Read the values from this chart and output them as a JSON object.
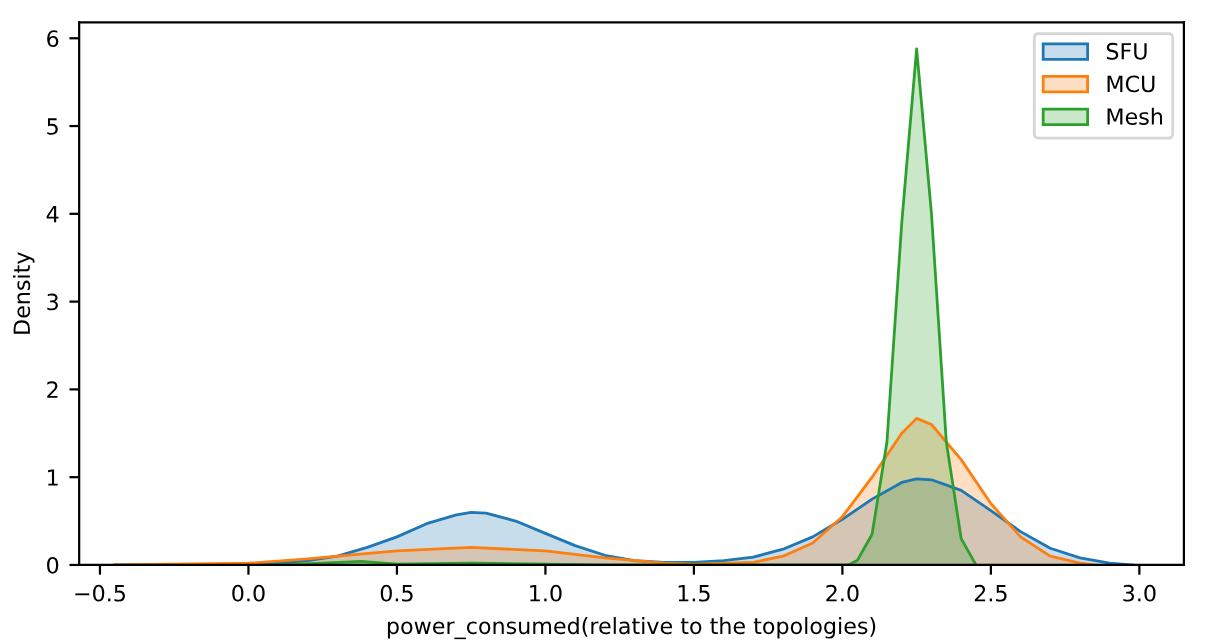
{
  "chart_data": {
    "type": "area",
    "xlabel": "power_consumed(relative to the topologies)",
    "ylabel": "Density",
    "xlim": [
      -0.57,
      3.15
    ],
    "ylim": [
      0,
      6.18
    ],
    "xticks": [
      {
        "value": -0.5,
        "label": "−0.5"
      },
      {
        "value": 0,
        "label": "0.0"
      },
      {
        "value": 0.5,
        "label": "0.5"
      },
      {
        "value": 1,
        "label": "1.0"
      },
      {
        "value": 1.5,
        "label": "1.5"
      },
      {
        "value": 2,
        "label": "2.0"
      },
      {
        "value": 2.5,
        "label": "2.5"
      },
      {
        "value": 3,
        "label": "3.0"
      }
    ],
    "yticks": [
      0,
      1,
      2,
      3,
      4,
      5,
      6
    ],
    "legend": "top right",
    "grid": false,
    "series": [
      {
        "name": "SFU",
        "color": "#1f77b4",
        "x": [
          -0.45,
          -0.2,
          0,
          0.1,
          0.2,
          0.3,
          0.4,
          0.5,
          0.6,
          0.7,
          0.75,
          0.8,
          0.9,
          1.0,
          1.1,
          1.2,
          1.3,
          1.4,
          1.5,
          1.6,
          1.7,
          1.8,
          1.9,
          2.0,
          2.1,
          2.2,
          2.25,
          2.3,
          2.4,
          2.5,
          2.6,
          2.7,
          2.8,
          2.9,
          2.98
        ],
        "values": [
          0,
          0,
          0.01,
          0.02,
          0.05,
          0.1,
          0.2,
          0.32,
          0.47,
          0.57,
          0.6,
          0.59,
          0.5,
          0.36,
          0.22,
          0.11,
          0.05,
          0.03,
          0.03,
          0.05,
          0.09,
          0.18,
          0.32,
          0.52,
          0.75,
          0.94,
          0.98,
          0.97,
          0.85,
          0.62,
          0.38,
          0.19,
          0.08,
          0.02,
          0
        ]
      },
      {
        "name": "MCU",
        "color": "#ff7f0e",
        "x": [
          -0.45,
          0,
          0.2,
          0.3,
          0.5,
          0.75,
          1.0,
          1.2,
          1.4,
          1.5,
          1.7,
          1.8,
          1.9,
          2.0,
          2.1,
          2.2,
          2.25,
          2.3,
          2.4,
          2.5,
          2.6,
          2.7,
          2.8,
          2.85
        ],
        "values": [
          0,
          0.02,
          0.07,
          0.1,
          0.16,
          0.2,
          0.16,
          0.08,
          0.02,
          0.01,
          0.03,
          0.1,
          0.25,
          0.55,
          1.0,
          1.5,
          1.67,
          1.6,
          1.2,
          0.7,
          0.32,
          0.1,
          0.02,
          0
        ]
      },
      {
        "name": "Mesh",
        "color": "#2ca02c",
        "x": [
          0.1,
          0.25,
          0.38,
          0.5,
          0.75,
          1.0,
          1.2,
          2.02,
          2.05,
          2.1,
          2.15,
          2.2,
          2.25,
          2.3,
          2.35,
          2.4,
          2.45
        ],
        "values": [
          0,
          0.02,
          0.04,
          0.01,
          0.02,
          0.01,
          0,
          0,
          0.05,
          0.35,
          1.4,
          3.9,
          5.88,
          4.0,
          1.4,
          0.3,
          0
        ]
      }
    ]
  }
}
